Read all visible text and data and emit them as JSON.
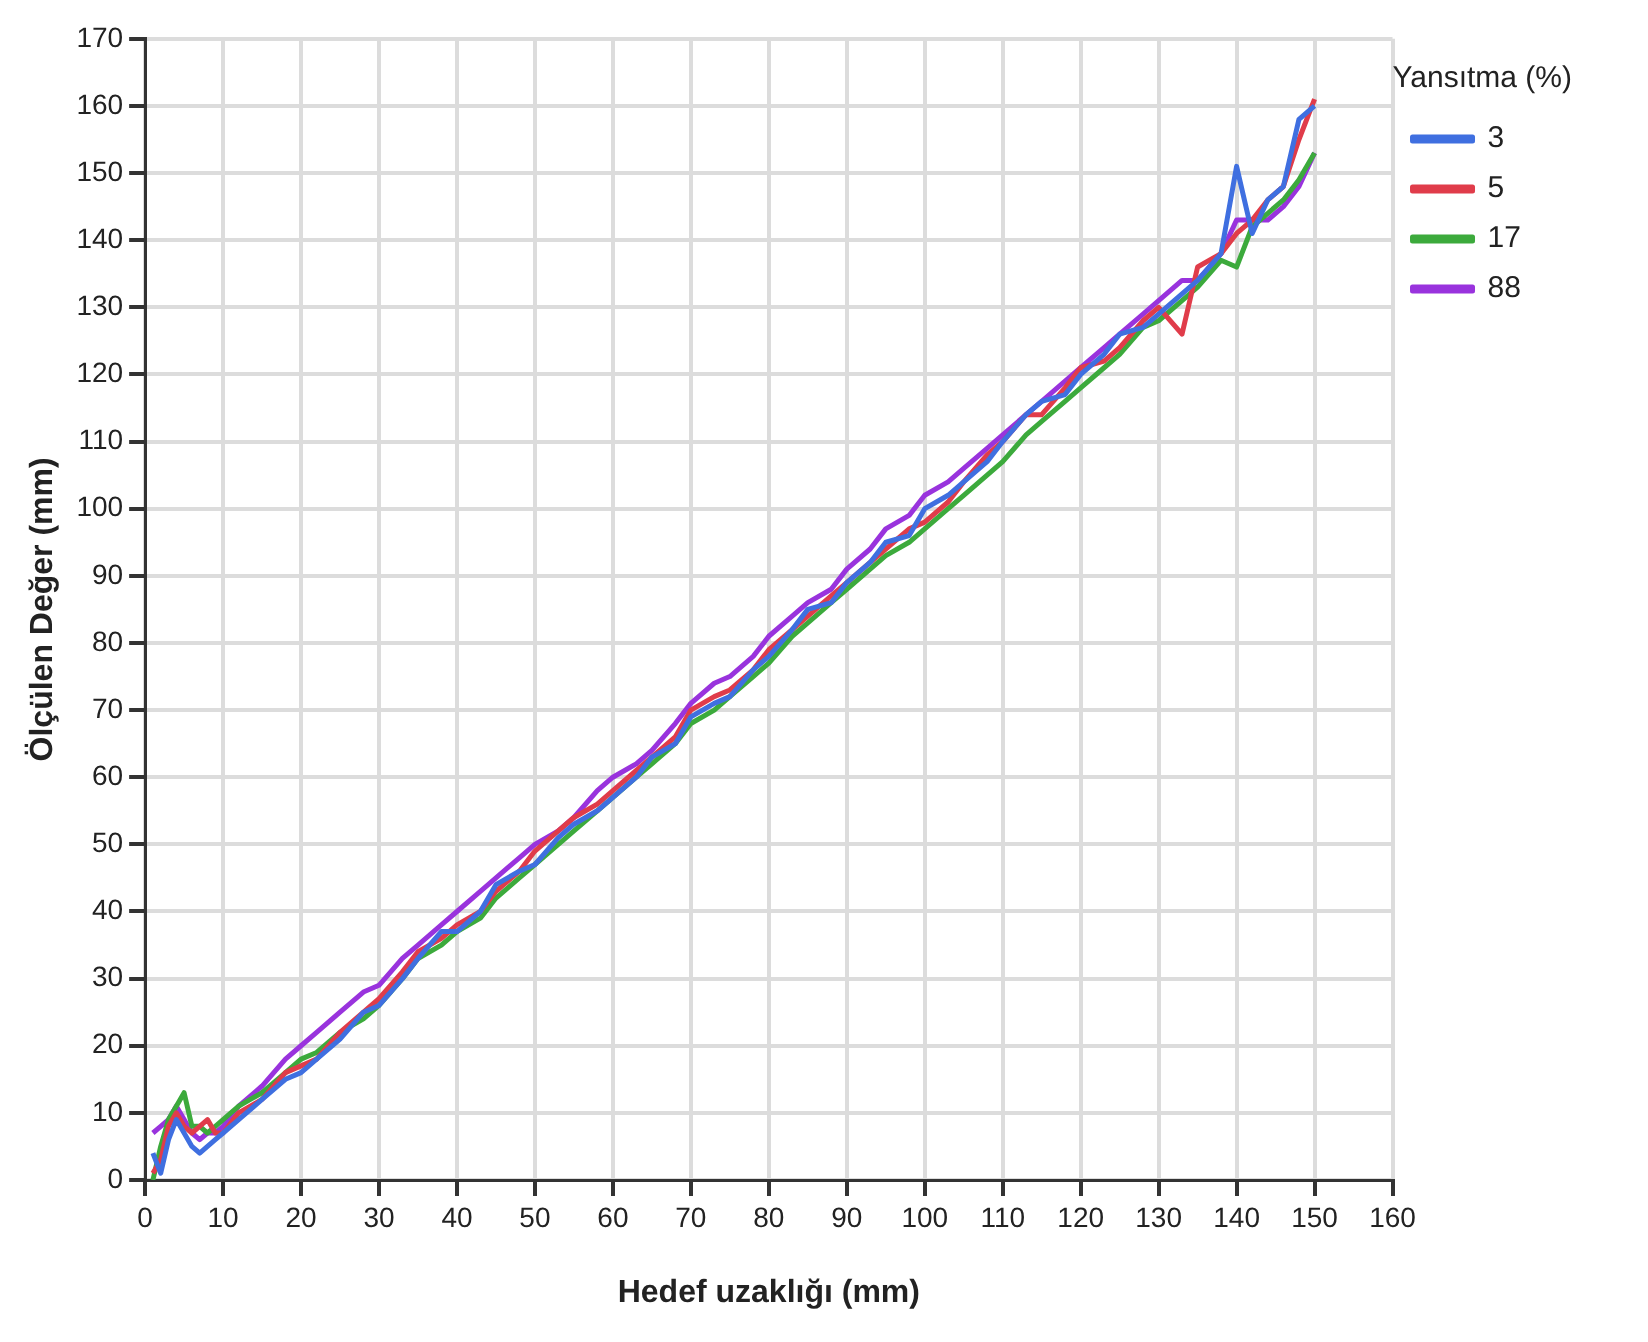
{
  "chart_data": {
    "type": "line",
    "xlabel": "Hedef uzaklığı (mm)",
    "ylabel": "Ölçülen Değer (mm)",
    "legend_title": "Yansıtma (%)",
    "legend": "top right",
    "grid": true,
    "marker": "none",
    "line_style": "solid",
    "xlim": [
      0,
      160
    ],
    "xticks": [
      0,
      10,
      20,
      30,
      40,
      50,
      60,
      70,
      80,
      90,
      100,
      110,
      120,
      130,
      140,
      150,
      160
    ],
    "ylim": [
      0,
      170
    ],
    "yticks": [
      0,
      10,
      20,
      30,
      40,
      50,
      60,
      70,
      80,
      90,
      100,
      110,
      120,
      130,
      140,
      150,
      160,
      170
    ],
    "x": [
      1,
      2,
      3,
      4,
      5,
      6,
      7,
      8,
      9,
      10,
      12,
      15,
      18,
      20,
      22,
      25,
      28,
      30,
      33,
      35,
      38,
      40,
      43,
      45,
      48,
      50,
      53,
      55,
      58,
      60,
      63,
      65,
      68,
      70,
      73,
      75,
      78,
      80,
      83,
      85,
      88,
      90,
      93,
      95,
      98,
      100,
      103,
      105,
      108,
      110,
      113,
      115,
      118,
      120,
      123,
      125,
      128,
      130,
      133,
      135,
      138,
      140,
      142,
      144,
      146,
      148,
      150
    ],
    "series": [
      {
        "name": "3",
        "color": "#3f6fe0",
        "values": [
          4,
          1,
          6,
          9,
          7,
          5,
          4,
          5,
          6,
          7,
          9,
          12,
          15,
          16,
          18,
          21,
          25,
          26,
          30,
          33,
          37,
          37,
          40,
          44,
          46,
          47,
          51,
          53,
          55,
          57,
          60,
          63,
          65,
          69,
          71,
          72,
          76,
          78,
          82,
          85,
          86,
          89,
          92,
          95,
          96,
          100,
          102,
          104,
          107,
          110,
          114,
          116,
          117,
          120,
          123,
          126,
          127,
          129,
          132,
          134,
          138,
          151,
          141,
          146,
          148,
          158,
          160
        ]
      },
      {
        "name": "5",
        "color": "#e03c4a",
        "values": [
          1,
          3,
          8,
          10,
          8,
          7,
          8,
          9,
          7,
          7,
          10,
          12,
          16,
          17,
          18,
          22,
          25,
          27,
          31,
          34,
          36,
          38,
          40,
          43,
          46,
          49,
          52,
          54,
          56,
          58,
          61,
          63,
          66,
          70,
          72,
          73,
          76,
          79,
          82,
          84,
          87,
          89,
          92,
          94,
          97,
          98,
          101,
          104,
          108,
          110,
          114,
          114,
          118,
          121,
          122,
          124,
          128,
          130,
          126,
          136,
          138,
          141,
          143,
          146,
          148,
          155,
          161
        ]
      },
      {
        "name": "17",
        "color": "#3caa3c",
        "values": [
          0,
          5,
          9,
          11,
          13,
          8,
          8,
          7,
          8,
          9,
          11,
          13,
          16,
          18,
          19,
          22,
          24,
          26,
          30,
          33,
          35,
          37,
          39,
          42,
          45,
          47,
          50,
          52,
          55,
          57,
          60,
          62,
          65,
          68,
          70,
          72,
          75,
          77,
          81,
          83,
          86,
          88,
          91,
          93,
          95,
          97,
          100,
          102,
          105,
          107,
          111,
          113,
          116,
          118,
          121,
          123,
          127,
          128,
          131,
          133,
          137,
          136,
          142,
          144,
          146,
          149,
          153
        ]
      },
      {
        "name": "88",
        "color": "#9933dd",
        "values": [
          7,
          8,
          9,
          11,
          9,
          7,
          6,
          7,
          7,
          8,
          11,
          14,
          18,
          20,
          22,
          25,
          28,
          29,
          33,
          35,
          38,
          40,
          43,
          45,
          48,
          50,
          52,
          54,
          58,
          60,
          62,
          64,
          68,
          71,
          74,
          75,
          78,
          81,
          84,
          86,
          88,
          91,
          94,
          97,
          99,
          102,
          104,
          106,
          109,
          111,
          114,
          116,
          119,
          121,
          124,
          126,
          129,
          131,
          134,
          134,
          138,
          143,
          143,
          143,
          145,
          148,
          153
        ]
      }
    ]
  }
}
